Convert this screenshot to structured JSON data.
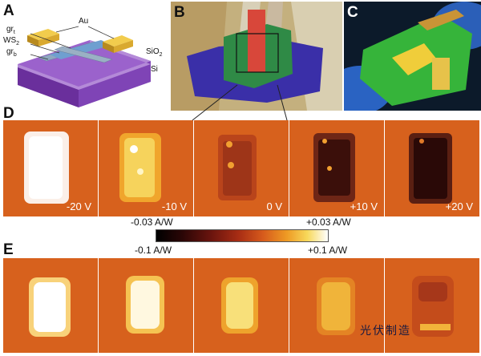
{
  "panels": {
    "a": "A",
    "b": "B",
    "c": "C",
    "d": "D",
    "e": "E"
  },
  "schematic": {
    "au": "Au",
    "gr_t": "gr",
    "gr_t_sub": "t",
    "ws2": "WS",
    "ws2_sub": "2",
    "gr_b": "gr",
    "gr_b_sub": "b",
    "sio2": "SiO",
    "sio2_sub": "2",
    "si": "Si"
  },
  "row_d": {
    "voltages": [
      "-20 V",
      "-10 V",
      "0 V",
      "+10 V",
      "+20 V"
    ]
  },
  "colorbar": {
    "top_min": "-0.03 A/W",
    "top_max": "+0.03 A/W",
    "bottom_min": "-0.1 A/W",
    "bottom_max": "+0.1 A/W"
  },
  "watermark": "光伏制造",
  "colors": {
    "map_background": "#d7611d",
    "hot": "#ffffff",
    "cold": "#000000",
    "substrate": "#7a3fb0",
    "gold": "#e2b230",
    "green_flake": "#3c9a4a"
  }
}
